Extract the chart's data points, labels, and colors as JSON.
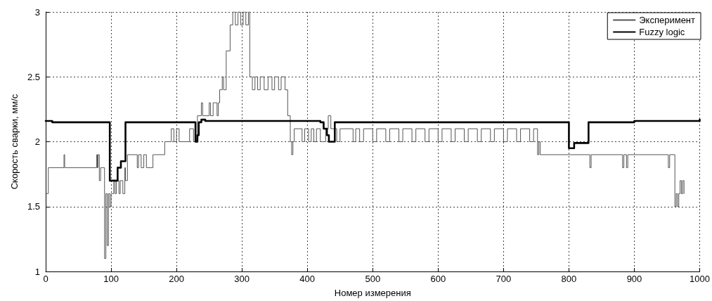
{
  "chart_data": {
    "type": "step",
    "xlabel": "Номер измерения",
    "ylabel": "Скорость сварки, мм/с",
    "xlim": [
      0,
      1000
    ],
    "ylim": [
      1,
      3
    ],
    "xticks": [
      0,
      100,
      200,
      300,
      400,
      500,
      600,
      700,
      800,
      900,
      1000
    ],
    "yticks": [
      1,
      1.5,
      2,
      2.5,
      3
    ],
    "grid": true,
    "legend": "top right",
    "line_style": "solid",
    "marker": "none",
    "series": [
      {
        "name": "Эксперимент",
        "color": "#555555",
        "x": [
          0,
          4,
          28,
          29,
          30,
          78,
          79,
          80,
          82,
          84,
          85,
          90,
          92,
          94,
          96,
          98,
          100,
          104,
          106,
          108,
          112,
          114,
          118,
          121,
          122,
          125,
          140,
          142,
          146,
          150,
          154,
          164,
          166,
          182,
          192,
          196,
          200,
          204,
          220,
          226,
          232,
          238,
          240,
          250,
          252,
          256,
          262,
          264,
          266,
          270,
          272,
          276,
          282,
          286,
          290,
          294,
          298,
          302,
          306,
          310,
          312,
          316,
          320,
          324,
          328,
          334,
          340,
          346,
          350,
          356,
          360,
          366,
          370,
          374,
          376,
          378,
          380,
          392,
          396,
          402,
          406,
          410,
          414,
          420,
          428,
          432,
          436,
          445,
          450,
          470,
          474,
          480,
          486,
          500,
          506,
          520,
          526,
          540,
          546,
          560,
          566,
          580,
          586,
          600,
          606,
          620,
          626,
          640,
          646,
          660,
          666,
          680,
          686,
          700,
          706,
          720,
          726,
          740,
          746,
          752,
          754,
          756,
          832,
          834,
          882,
          884,
          888,
          890,
          952,
          954,
          962,
          964,
          966,
          968,
          970,
          972,
          974,
          976
        ],
        "values": [
          1.6,
          1.8,
          1.9,
          1.8,
          1.8,
          1.9,
          1.8,
          1.9,
          1.7,
          1.8,
          1.8,
          1.1,
          1.6,
          1.2,
          1.6,
          1.5,
          1.6,
          1.7,
          1.6,
          1.7,
          1.6,
          1.7,
          1.6,
          1.8,
          1.7,
          1.9,
          1.8,
          1.9,
          1.8,
          1.9,
          1.8,
          1.9,
          1.9,
          2.0,
          2.1,
          2.0,
          2.1,
          2.0,
          2.1,
          2.0,
          2.2,
          2.3,
          2.2,
          2.3,
          2.2,
          2.3,
          2.2,
          2.3,
          2.4,
          2.5,
          2.4,
          2.7,
          2.9,
          3.0,
          2.9,
          3.0,
          2.9,
          3.0,
          2.9,
          3.0,
          2.5,
          2.4,
          2.5,
          2.4,
          2.5,
          2.4,
          2.5,
          2.4,
          2.5,
          2.4,
          2.5,
          2.4,
          2.2,
          2.0,
          1.9,
          2.0,
          2.1,
          2.0,
          2.1,
          2.0,
          2.1,
          2.0,
          2.1,
          2.0,
          2.1,
          2.2,
          2.1,
          2.0,
          2.1,
          2.0,
          2.1,
          2.0,
          2.1,
          2.0,
          2.1,
          2.0,
          2.1,
          2.0,
          2.1,
          2.0,
          2.1,
          2.0,
          2.1,
          2.0,
          2.1,
          2.0,
          2.1,
          2.0,
          2.1,
          2.0,
          2.1,
          2.0,
          2.1,
          2.0,
          2.1,
          2.0,
          2.1,
          2.0,
          2.1,
          1.9,
          2.0,
          1.9,
          1.8,
          1.9,
          1.8,
          1.9,
          1.8,
          1.9,
          1.8,
          1.9,
          1.5,
          1.6,
          1.5,
          1.6,
          1.7,
          1.6,
          1.7,
          1.6
        ]
      },
      {
        "name": "Fuzzy logic",
        "color": "#000000",
        "x": [
          0,
          10,
          98,
          108,
          110,
          115,
          122,
          229,
          232,
          234,
          238,
          244,
          420,
          425,
          430,
          433,
          442,
          800,
          808,
          830,
          900,
          1000
        ],
        "values": [
          2.16,
          2.15,
          1.7,
          1.7,
          1.8,
          1.85,
          2.15,
          2.0,
          2.05,
          2.15,
          2.17,
          2.16,
          2.15,
          2.1,
          2.05,
          2.0,
          2.15,
          1.95,
          1.99,
          2.15,
          2.16,
          2.17
        ]
      }
    ]
  }
}
